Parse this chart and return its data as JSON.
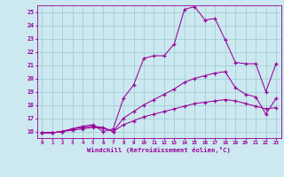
{
  "bg_color": "#cce8f0",
  "line_color": "#990099",
  "grid_color": "#99cccc",
  "xlim": [
    -0.5,
    23.5
  ],
  "ylim": [
    15.5,
    25.5
  ],
  "xticks": [
    0,
    1,
    2,
    3,
    4,
    5,
    6,
    7,
    8,
    9,
    10,
    11,
    12,
    13,
    14,
    15,
    16,
    17,
    18,
    19,
    20,
    21,
    22,
    23
  ],
  "yticks": [
    16,
    17,
    18,
    19,
    20,
    21,
    22,
    23,
    24,
    25
  ],
  "xlabel": "Windchill (Refroidissement éolien,°C)",
  "series1_x": [
    0,
    1,
    2,
    3,
    4,
    5,
    6,
    7,
    8,
    9,
    10,
    11,
    12,
    13,
    14,
    15,
    16,
    17,
    18,
    19,
    20,
    21,
    22,
    23
  ],
  "series1_y": [
    15.9,
    15.9,
    16.0,
    16.1,
    16.2,
    16.3,
    16.25,
    16.0,
    16.5,
    16.8,
    17.1,
    17.3,
    17.5,
    17.7,
    17.9,
    18.1,
    18.2,
    18.3,
    18.4,
    18.3,
    18.1,
    17.9,
    17.7,
    17.8
  ],
  "series2_x": [
    0,
    1,
    2,
    3,
    4,
    5,
    6,
    7,
    8,
    9,
    10,
    11,
    12,
    13,
    14,
    15,
    16,
    17,
    18,
    19,
    20,
    21,
    22,
    23
  ],
  "series2_y": [
    15.9,
    15.9,
    16.0,
    16.2,
    16.3,
    16.4,
    16.3,
    16.0,
    17.0,
    17.5,
    18.0,
    18.4,
    18.8,
    19.2,
    19.7,
    20.0,
    20.2,
    20.4,
    20.5,
    19.3,
    18.8,
    18.6,
    17.3,
    18.5
  ],
  "series3_x": [
    0,
    1,
    2,
    3,
    4,
    5,
    6,
    7,
    8,
    9,
    10,
    11,
    12,
    13,
    14,
    15,
    16,
    17,
    18,
    19,
    20,
    21,
    22,
    23
  ],
  "series3_y": [
    15.9,
    15.9,
    16.0,
    16.2,
    16.4,
    16.5,
    16.0,
    16.2,
    18.5,
    19.5,
    21.5,
    21.7,
    21.7,
    22.6,
    25.2,
    25.4,
    24.4,
    24.5,
    22.9,
    21.2,
    21.1,
    21.1,
    19.0,
    21.1
  ]
}
